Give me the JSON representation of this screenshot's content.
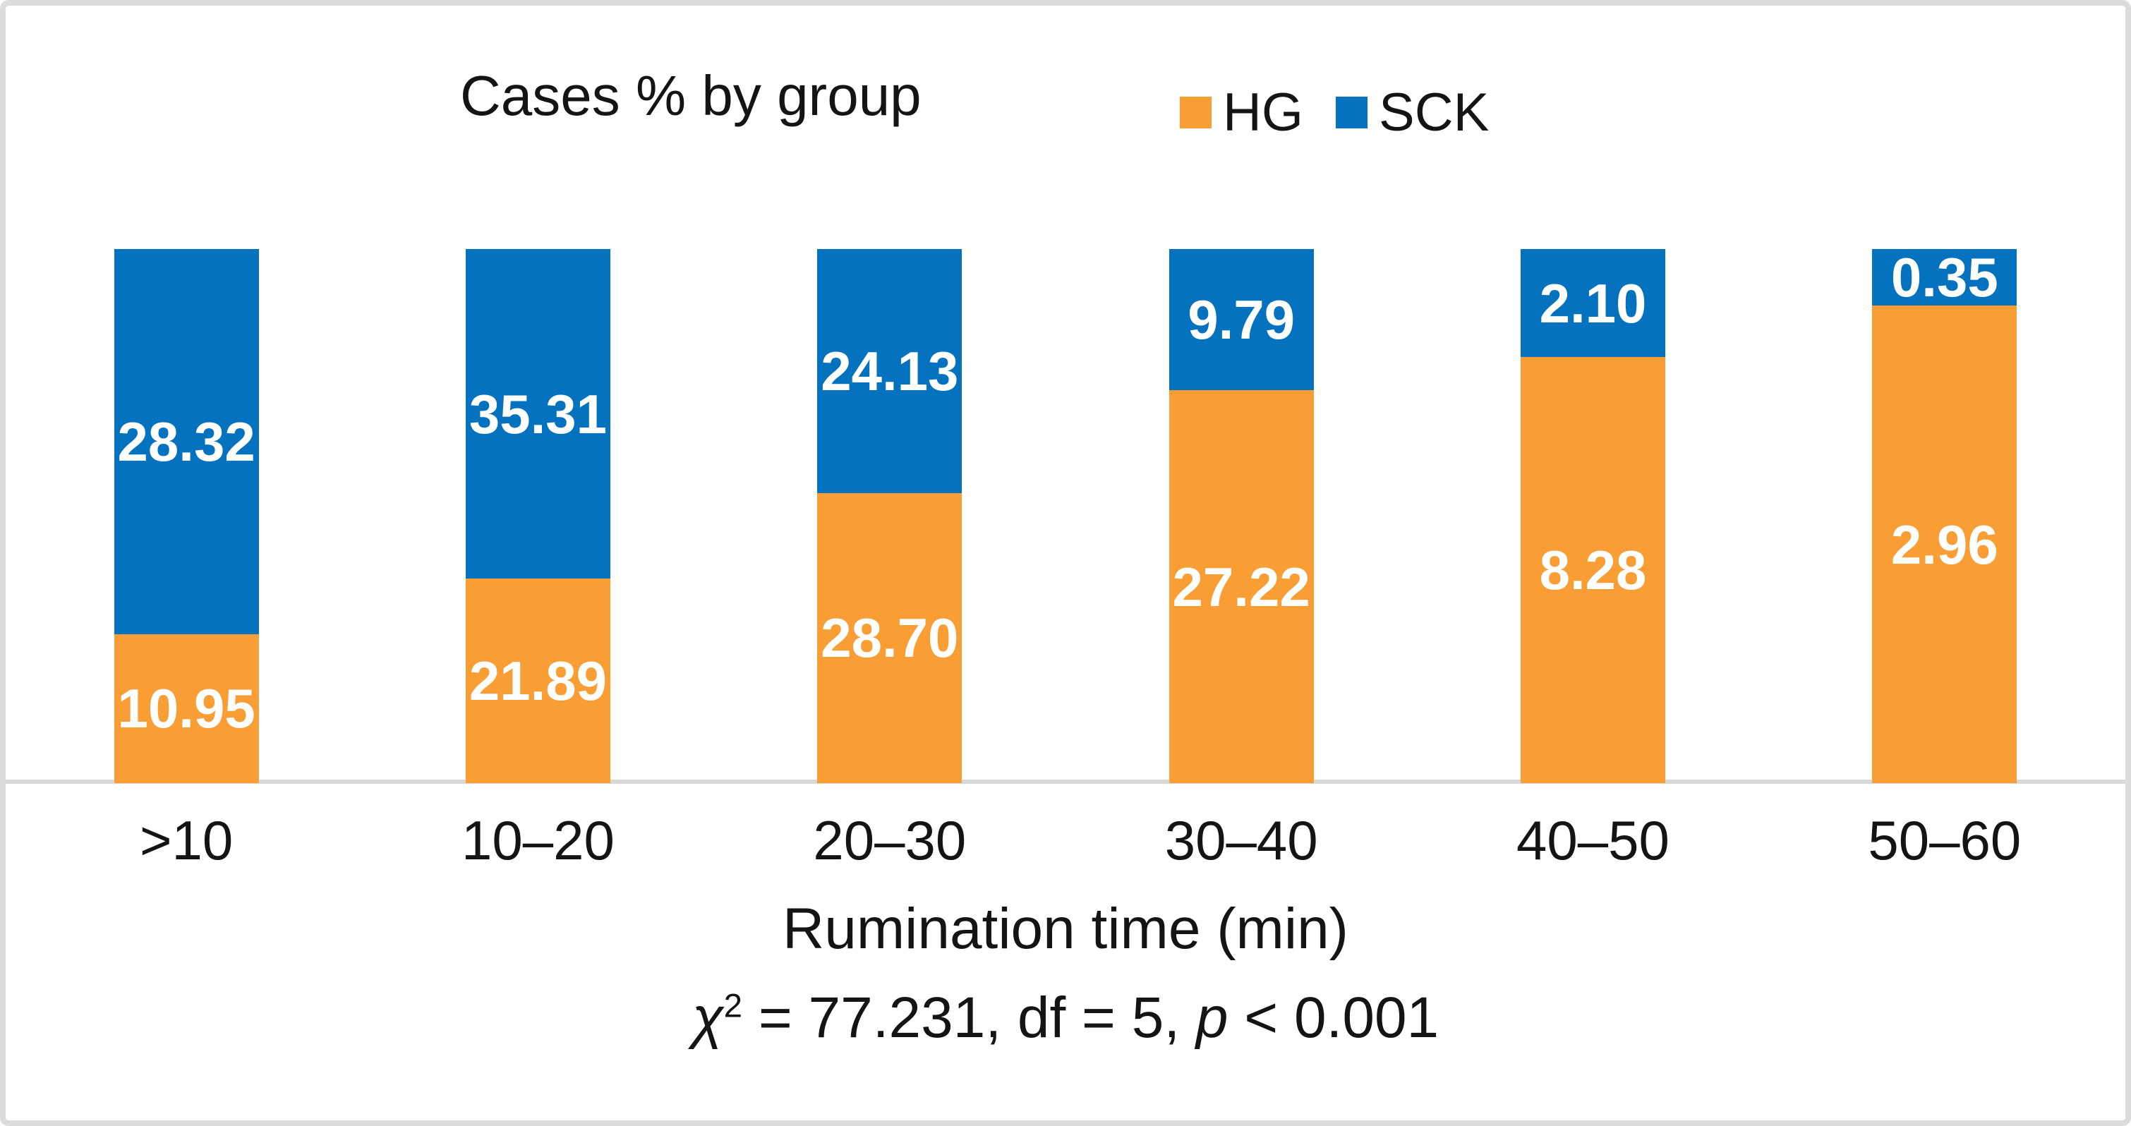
{
  "chart_data": {
    "type": "bar",
    "stacking": "percent",
    "title": "Cases % by group",
    "categories": [
      ">10",
      "10–20",
      "20–30",
      "30–40",
      "40–50",
      "50–60"
    ],
    "series": [
      {
        "name": "HG",
        "color": "#F99D35",
        "values": [
          10.95,
          21.89,
          28.7,
          27.22,
          8.28,
          2.96
        ]
      },
      {
        "name": "SCK",
        "color": "#0472BE",
        "values": [
          28.32,
          35.31,
          24.13,
          9.79,
          2.1,
          0.35
        ]
      }
    ],
    "xlabel": "Rumination time (min)",
    "annotation": "χ² = 77.231, df = 5, p < 0.001",
    "value_label_format": "2-decimals",
    "value_label_color": "#FFFFFF",
    "legend_position": "top-right",
    "grid": false,
    "ylim": [
      0,
      100
    ],
    "axis_line_color": "#D8D8D8",
    "border_color": "#DCDCDC"
  },
  "stats": {
    "chi_symbol": "χ",
    "chi_superscript": "2",
    "mid_text": " = 77.231, df = 5, ",
    "p_symbol": "p",
    "tail_text": " < 0.001"
  }
}
